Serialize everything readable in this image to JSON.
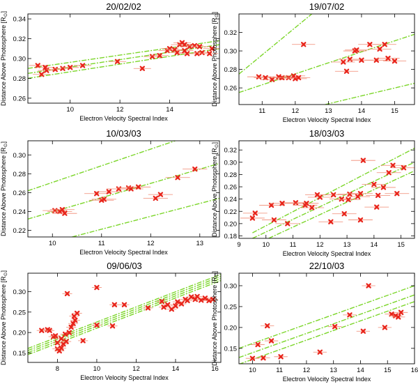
{
  "chart_data": [
    {
      "type": "scatter",
      "title": "20/02/02",
      "xlabel": "Electron Velocity Spectral Index",
      "ylabel": "Distance Above Photosphere",
      "ylabel_unit": "[R",
      "ylabel_sub": "⊙",
      "ylabel_close": "]",
      "xlim": [
        8.3,
        16.0
      ],
      "ylim": [
        0.255,
        0.345
      ],
      "xticks": [
        10,
        12,
        14
      ],
      "yticks": [
        0.26,
        0.28,
        0.3,
        0.32,
        0.34
      ],
      "ytick_labels": [
        "0.26",
        "0.28",
        "0.30",
        "0.32",
        "0.34"
      ],
      "points": [
        [
          8.7,
          0.293
        ],
        [
          8.85,
          0.284
        ],
        [
          9.0,
          0.291
        ],
        [
          9.05,
          0.288
        ],
        [
          9.4,
          0.289
        ],
        [
          9.7,
          0.29
        ],
        [
          10.0,
          0.291
        ],
        [
          10.5,
          0.293
        ],
        [
          11.9,
          0.297
        ],
        [
          12.9,
          0.29
        ],
        [
          13.3,
          0.302
        ],
        [
          13.6,
          0.303
        ],
        [
          13.9,
          0.308
        ],
        [
          14.0,
          0.31
        ],
        [
          14.2,
          0.309
        ],
        [
          14.3,
          0.306
        ],
        [
          14.4,
          0.314
        ],
        [
          14.5,
          0.316
        ],
        [
          14.6,
          0.314
        ],
        [
          14.6,
          0.308
        ],
        [
          14.7,
          0.305
        ],
        [
          14.8,
          0.312
        ],
        [
          15.0,
          0.313
        ],
        [
          15.1,
          0.305
        ],
        [
          15.3,
          0.306
        ],
        [
          15.6,
          0.305
        ],
        [
          15.7,
          0.31
        ],
        [
          15.2,
          0.312
        ]
      ],
      "xerr": 0.35,
      "fit_lines": [
        [
          [
            8.3,
            0.29
          ],
          [
            16.0,
            0.318
          ]
        ],
        [
          [
            8.3,
            0.285
          ],
          [
            16.0,
            0.314
          ]
        ],
        [
          [
            8.3,
            0.28
          ],
          [
            16.0,
            0.31
          ]
        ]
      ]
    },
    {
      "type": "scatter",
      "title": "19/07/02",
      "xlabel": "Electron Velocity Spectral Index",
      "ylabel": "Distance Above Photosphere",
      "ylabel_unit": "[R",
      "ylabel_sub": "⊙",
      "ylabel_close": "]",
      "xlim": [
        10.3,
        15.6
      ],
      "ylim": [
        0.242,
        0.34
      ],
      "xticks": [
        11,
        12,
        13,
        14,
        15
      ],
      "yticks": [
        0.26,
        0.28,
        0.3,
        0.32
      ],
      "ytick_labels": [
        "0.26",
        "0.28",
        "0.30",
        "0.32"
      ],
      "points": [
        [
          10.9,
          0.272
        ],
        [
          11.1,
          0.271
        ],
        [
          11.3,
          0.269
        ],
        [
          11.5,
          0.272
        ],
        [
          11.6,
          0.271
        ],
        [
          11.8,
          0.271
        ],
        [
          11.95,
          0.273
        ],
        [
          12.0,
          0.27
        ],
        [
          12.1,
          0.271
        ],
        [
          12.25,
          0.307
        ],
        [
          13.45,
          0.288
        ],
        [
          13.55,
          0.278
        ],
        [
          13.65,
          0.291
        ],
        [
          13.8,
          0.3
        ],
        [
          13.85,
          0.301
        ],
        [
          14.0,
          0.29
        ],
        [
          14.25,
          0.307
        ],
        [
          14.45,
          0.29
        ],
        [
          14.55,
          0.302
        ],
        [
          14.7,
          0.307
        ],
        [
          14.8,
          0.292
        ],
        [
          15.0,
          0.289
        ]
      ],
      "xerr": 0.35,
      "fit_lines": [
        [
          [
            10.3,
            0.275
          ],
          [
            12.5,
            0.34
          ]
        ],
        [
          [
            10.3,
            0.255
          ],
          [
            15.6,
            0.318
          ]
        ],
        [
          [
            12.9,
            0.242
          ],
          [
            15.6,
            0.265
          ]
        ]
      ]
    },
    {
      "type": "scatter",
      "title": "10/03/03",
      "xlabel": "Electron Velocity Spectral Index",
      "ylabel": "Distance Above Photosphere",
      "ylabel_unit": "[R",
      "ylabel_sub": "⊙",
      "ylabel_close": "]",
      "xlim": [
        9.5,
        13.4
      ],
      "ylim": [
        0.213,
        0.315
      ],
      "xticks": [
        10,
        11,
        12,
        13
      ],
      "yticks": [
        0.22,
        0.24,
        0.26,
        0.28,
        0.3
      ],
      "ytick_labels": [
        "0.22",
        "0.24",
        "0.26",
        "0.28",
        "0.30"
      ],
      "points": [
        [
          10.05,
          0.241
        ],
        [
          10.15,
          0.24
        ],
        [
          10.2,
          0.242
        ],
        [
          10.25,
          0.238
        ],
        [
          10.9,
          0.259
        ],
        [
          11.0,
          0.252
        ],
        [
          11.05,
          0.253
        ],
        [
          11.15,
          0.261
        ],
        [
          11.35,
          0.264
        ],
        [
          11.55,
          0.265
        ],
        [
          11.6,
          0.264
        ],
        [
          11.75,
          0.266
        ],
        [
          12.1,
          0.254
        ],
        [
          12.2,
          0.258
        ],
        [
          12.55,
          0.276
        ],
        [
          12.9,
          0.285
        ]
      ],
      "xerr": 0.25,
      "fit_lines": [
        [
          [
            9.5,
            0.262
          ],
          [
            12.5,
            0.315
          ]
        ],
        [
          [
            9.5,
            0.232
          ],
          [
            13.4,
            0.291
          ]
        ],
        [
          [
            10.4,
            0.213
          ],
          [
            13.4,
            0.254
          ]
        ]
      ]
    },
    {
      "type": "scatter",
      "title": "18/03/03",
      "xlabel": "Electron Velocity Spectral Index",
      "ylabel": "Distance Above Photosphere",
      "ylabel_unit": "[R",
      "ylabel_sub": "⊙",
      "ylabel_close": "]",
      "xlim": [
        9.0,
        15.5
      ],
      "ylim": [
        0.176,
        0.335
      ],
      "xticks": [
        9,
        10,
        11,
        12,
        13,
        14,
        15
      ],
      "yticks": [
        0.18,
        0.2,
        0.22,
        0.24,
        0.26,
        0.28,
        0.3,
        0.32
      ],
      "ytick_labels": [
        "0.18",
        "0.20",
        "0.22",
        "0.24",
        "0.26",
        "0.28",
        "0.30",
        "0.32"
      ],
      "points": [
        [
          9.5,
          0.209
        ],
        [
          9.6,
          0.217
        ],
        [
          10.2,
          0.23
        ],
        [
          10.3,
          0.206
        ],
        [
          10.6,
          0.233
        ],
        [
          10.8,
          0.2
        ],
        [
          11.1,
          0.234
        ],
        [
          11.45,
          0.23
        ],
        [
          11.5,
          0.233
        ],
        [
          11.7,
          0.226
        ],
        [
          11.9,
          0.247
        ],
        [
          12.0,
          0.243
        ],
        [
          12.4,
          0.203
        ],
        [
          12.5,
          0.247
        ],
        [
          12.8,
          0.24
        ],
        [
          12.9,
          0.216
        ],
        [
          13.05,
          0.239
        ],
        [
          13.1,
          0.248
        ],
        [
          13.4,
          0.244
        ],
        [
          13.5,
          0.206
        ],
        [
          13.5,
          0.249
        ],
        [
          13.6,
          0.303
        ],
        [
          14.0,
          0.264
        ],
        [
          14.1,
          0.227
        ],
        [
          14.15,
          0.246
        ],
        [
          14.35,
          0.259
        ],
        [
          14.55,
          0.283
        ],
        [
          14.7,
          0.295
        ],
        [
          14.85,
          0.249
        ],
        [
          15.1,
          0.291
        ]
      ],
      "xerr": 0.45,
      "fit_lines": [
        [
          [
            9.5,
            0.185
          ],
          [
            15.5,
            0.323
          ]
        ],
        [
          [
            9.5,
            0.176
          ],
          [
            15.5,
            0.3
          ]
        ],
        [
          [
            10.1,
            0.176
          ],
          [
            15.5,
            0.286
          ]
        ]
      ]
    },
    {
      "type": "scatter",
      "title": "09/06/03",
      "xlabel": "Electron Velocity Spectral Index",
      "ylabel": "Distance Above Photosphere",
      "ylabel_unit": "[R",
      "ylabel_sub": "⊙",
      "ylabel_close": "]",
      "xlim": [
        6.5,
        16.3
      ],
      "ylim": [
        0.127,
        0.345
      ],
      "xticks": [
        8,
        10,
        12,
        14,
        16
      ],
      "yticks": [
        0.15,
        0.2,
        0.25,
        0.3
      ],
      "ytick_labels": [
        "0.15",
        "0.20",
        "0.25",
        "0.30"
      ],
      "points": [
        [
          7.2,
          0.205
        ],
        [
          7.5,
          0.207
        ],
        [
          7.6,
          0.205
        ],
        [
          7.8,
          0.19
        ],
        [
          7.9,
          0.192
        ],
        [
          8.0,
          0.16
        ],
        [
          8.0,
          0.175
        ],
        [
          8.1,
          0.155
        ],
        [
          8.2,
          0.162
        ],
        [
          8.2,
          0.185
        ],
        [
          8.3,
          0.172
        ],
        [
          8.4,
          0.196
        ],
        [
          8.45,
          0.178
        ],
        [
          8.5,
          0.295
        ],
        [
          8.6,
          0.2
        ],
        [
          8.7,
          0.213
        ],
        [
          8.8,
          0.222
        ],
        [
          8.85,
          0.24
        ],
        [
          8.9,
          0.23
        ],
        [
          9.0,
          0.247
        ],
        [
          9.3,
          0.18
        ],
        [
          10.0,
          0.31
        ],
        [
          10.0,
          0.218
        ],
        [
          10.8,
          0.216
        ],
        [
          10.9,
          0.268
        ],
        [
          11.4,
          0.268
        ],
        [
          12.6,
          0.26
        ],
        [
          13.3,
          0.276
        ],
        [
          13.4,
          0.262
        ],
        [
          13.6,
          0.268
        ],
        [
          13.8,
          0.257
        ],
        [
          14.0,
          0.265
        ],
        [
          14.1,
          0.275
        ],
        [
          14.3,
          0.27
        ],
        [
          14.5,
          0.281
        ],
        [
          14.6,
          0.278
        ],
        [
          14.8,
          0.287
        ],
        [
          15.0,
          0.281
        ],
        [
          15.1,
          0.288
        ],
        [
          15.3,
          0.279
        ],
        [
          15.5,
          0.284
        ],
        [
          15.7,
          0.278
        ],
        [
          15.9,
          0.281
        ]
      ],
      "xerr": 0.25,
      "fit_lines": [
        [
          [
            6.5,
            0.161
          ],
          [
            16.3,
            0.342
          ]
        ],
        [
          [
            6.5,
            0.156
          ],
          [
            16.3,
            0.337
          ]
        ],
        [
          [
            6.5,
            0.151
          ],
          [
            16.3,
            0.332
          ]
        ],
        [
          [
            6.5,
            0.146
          ],
          [
            16.3,
            0.327
          ]
        ]
      ]
    },
    {
      "type": "scatter",
      "title": "22/10/03",
      "xlabel": "Electron Velocity Spectral Index",
      "ylabel": "Distance Above Photosphere",
      "ylabel_unit": "[R",
      "ylabel_sub": "⊙",
      "ylabel_close": "]",
      "xlim": [
        9.5,
        16.0
      ],
      "ylim": [
        0.113,
        0.33
      ],
      "xticks": [
        10,
        11,
        12,
        13,
        14,
        15,
        16
      ],
      "yticks": [
        0.15,
        0.2,
        0.25,
        0.3
      ],
      "ytick_labels": [
        "0.15",
        "0.20",
        "0.25",
        "0.30"
      ],
      "points": [
        [
          10.0,
          0.126
        ],
        [
          10.2,
          0.159
        ],
        [
          10.4,
          0.127
        ],
        [
          10.55,
          0.204
        ],
        [
          10.7,
          0.168
        ],
        [
          11.05,
          0.13
        ],
        [
          12.5,
          0.141
        ],
        [
          13.05,
          0.202
        ],
        [
          13.6,
          0.23
        ],
        [
          14.1,
          0.191
        ],
        [
          14.3,
          0.3
        ],
        [
          14.9,
          0.2
        ],
        [
          15.15,
          0.232
        ],
        [
          15.3,
          0.228
        ],
        [
          15.4,
          0.225
        ],
        [
          15.5,
          0.236
        ]
      ],
      "xerr": 0.25,
      "fit_lines": [
        [
          [
            9.5,
            0.15
          ],
          [
            16.0,
            0.3
          ]
        ],
        [
          [
            9.5,
            0.128
          ],
          [
            16.0,
            0.278
          ]
        ],
        [
          [
            9.5,
            0.112
          ],
          [
            16.0,
            0.262
          ]
        ]
      ]
    }
  ]
}
